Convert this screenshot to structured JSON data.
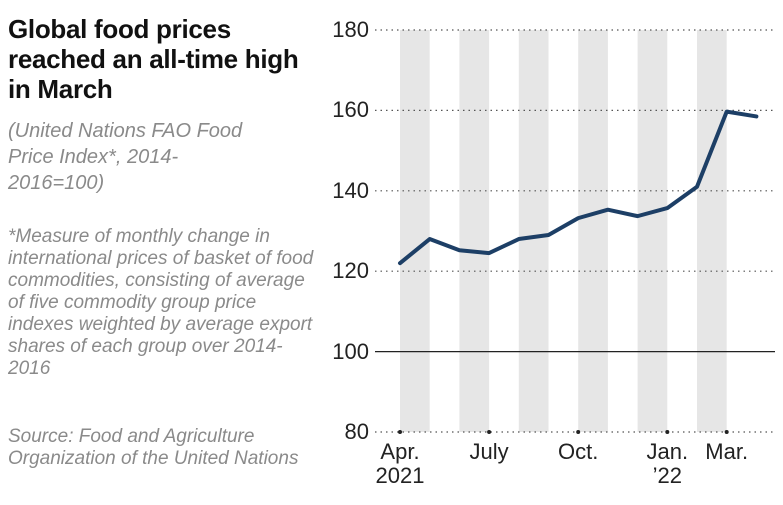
{
  "chart_data": {
    "type": "line",
    "title": "Global food prices reached an all-time high in March",
    "subtitle": "(United Nations FAO Food Price Index*, 2014-2016=100)",
    "note": "*Measure of monthly change in international prices of basket of food commodities, consisting of average of five commodity group price indexes weighted by average export shares of each group over 2014-2016",
    "source": "Source: Food and Agriculture Organization of the United Nations",
    "categories": [
      "Apr. 2021",
      null,
      null,
      "July",
      null,
      null,
      "Oct.",
      null,
      null,
      "Jan. ’22",
      null,
      "Mar.",
      null
    ],
    "series": [
      {
        "name": "FAO Food Price Index",
        "color": "#1d3f66",
        "values": [
          122,
          128,
          125.2,
          124.5,
          128,
          129,
          133.2,
          135.3,
          133.7,
          135.7,
          141,
          159.7,
          158.5
        ]
      }
    ],
    "ylim": [
      80,
      180
    ],
    "yticks": [
      80,
      100,
      120,
      140,
      160,
      180
    ],
    "baseline": 100,
    "grid": true
  }
}
